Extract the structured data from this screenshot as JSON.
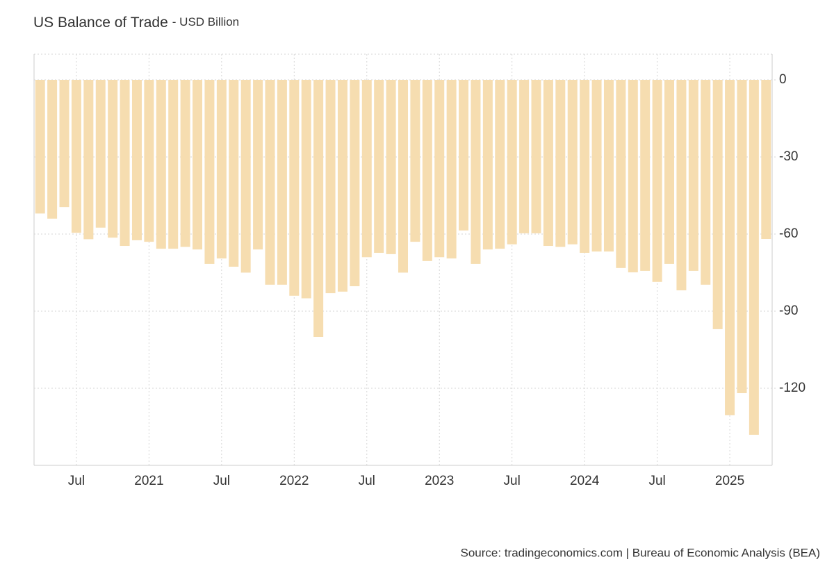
{
  "chart_data": {
    "type": "bar",
    "title": "US Balance of Trade",
    "subtitle": "- USD Billion",
    "source": "Source: tradingeconomics.com | Bureau of Economic Analysis (BEA)",
    "categories": [
      null,
      null,
      null,
      "Jul",
      null,
      null,
      null,
      null,
      null,
      "2021",
      null,
      null,
      null,
      null,
      null,
      "Jul",
      null,
      null,
      null,
      null,
      null,
      "2022",
      null,
      null,
      null,
      null,
      null,
      "Jul",
      null,
      null,
      null,
      null,
      null,
      "2023",
      null,
      null,
      null,
      null,
      null,
      "Jul",
      null,
      null,
      null,
      null,
      null,
      "2024",
      null,
      null,
      null,
      null,
      null,
      "Jul",
      null,
      null,
      null,
      null,
      null,
      "2025",
      null,
      null,
      null
    ],
    "values": [
      -52,
      -54,
      -49.5,
      -59.5,
      -62,
      -57.5,
      -61.4,
      -64.6,
      -62.4,
      -63,
      -65.7,
      -65.7,
      -65,
      -66,
      -71.6,
      -69.5,
      -72.7,
      -75,
      -66,
      -79.7,
      -79.7,
      -84,
      -85,
      -100,
      -83,
      -82.4,
      -80.3,
      -69,
      -67.3,
      -67.8,
      -75,
      -63,
      -70.5,
      -69,
      -69.5,
      -58.6,
      -71.6,
      -66,
      -65.7,
      -64,
      -59.7,
      -59.7,
      -64.6,
      -65,
      -64,
      -67.3,
      -66.8,
      -66.8,
      -73.2,
      -74.9,
      -74.3,
      -78.6,
      -71.6,
      -81.9,
      -74.3,
      -79.7,
      -97,
      -130.5,
      -121.9,
      -138.1,
      -61.9
    ],
    "color": "#f6ddb0",
    "ylim": [
      -150,
      10
    ],
    "yticks": [
      -120,
      -90,
      -60,
      -30,
      0
    ],
    "grid": true
  }
}
